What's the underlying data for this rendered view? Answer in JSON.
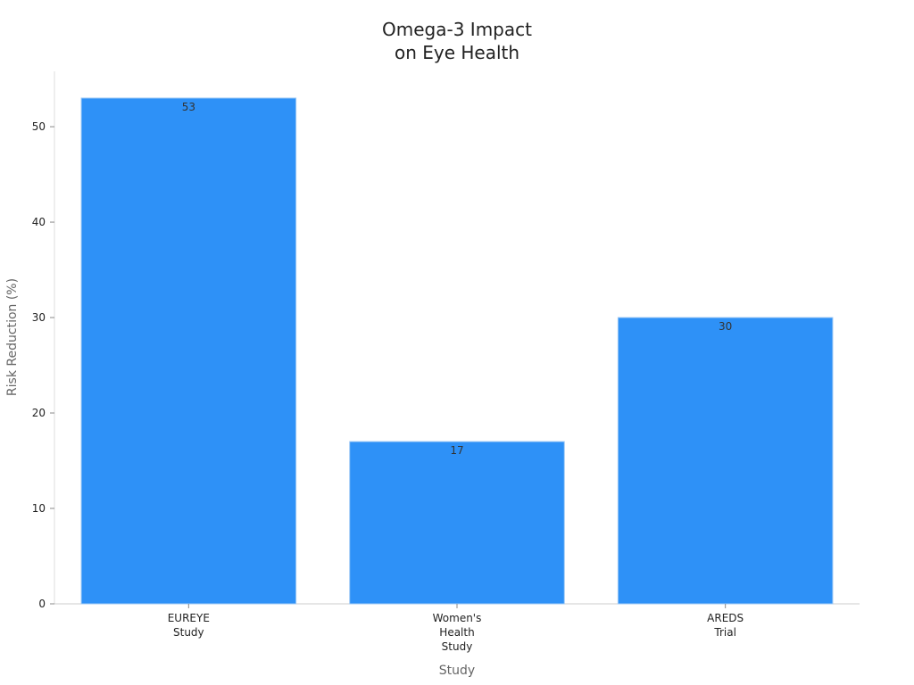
{
  "chart_data": {
    "type": "bar",
    "title": "Omega-3 Impact\non Eye Health",
    "x_label": "Study",
    "y_label": "Risk Reduction (%)",
    "categories": [
      "EUREYE\nStudy",
      "Women's\nHealth\nStudy",
      "AREDS\nTrial"
    ],
    "values": [
      53,
      17,
      30
    ],
    "color": "#2e91f7",
    "ylim": [
      0,
      55.8
    ],
    "yticks": [
      0,
      10,
      20,
      30,
      40,
      50
    ],
    "grid": false
  }
}
